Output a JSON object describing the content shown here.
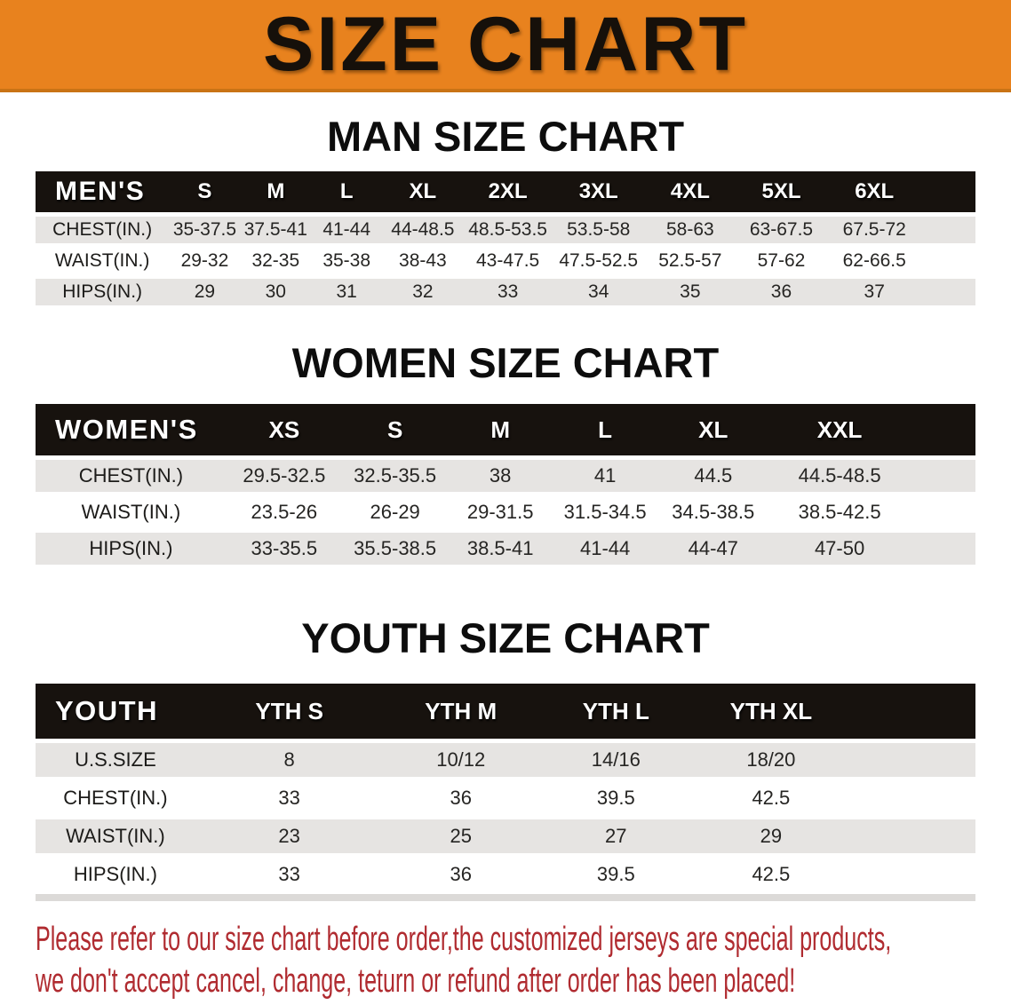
{
  "banner": {
    "title": "SIZE CHART"
  },
  "men": {
    "heading": "MAN SIZE CHART",
    "label": "MEN'S",
    "columns": [
      "S",
      "M",
      "L",
      "XL",
      "2XL",
      "3XL",
      "4XL",
      "5XL",
      "6XL"
    ],
    "rows": [
      {
        "label": "CHEST(IN.)",
        "values": [
          "35-37.5",
          "37.5-41",
          "41-44",
          "44-48.5",
          "48.5-53.5",
          "53.5-58",
          "58-63",
          "63-67.5",
          "67.5-72"
        ]
      },
      {
        "label": "WAIST(IN.)",
        "values": [
          "29-32",
          "32-35",
          "35-38",
          "38-43",
          "43-47.5",
          "47.5-52.5",
          "52.5-57",
          "57-62",
          "62-66.5"
        ]
      },
      {
        "label": "HIPS(IN.)",
        "values": [
          "29",
          "30",
          "31",
          "32",
          "33",
          "34",
          "35",
          "36",
          "37"
        ]
      }
    ]
  },
  "women": {
    "heading": "WOMEN SIZE CHART",
    "label": "WOMEN'S",
    "columns": [
      "XS",
      "S",
      "M",
      "L",
      "XL",
      "XXL"
    ],
    "rows": [
      {
        "label": "CHEST(IN.)",
        "values": [
          "29.5-32.5",
          "32.5-35.5",
          "38",
          "41",
          "44.5",
          "44.5-48.5"
        ]
      },
      {
        "label": "WAIST(IN.)",
        "values": [
          "23.5-26",
          "26-29",
          "29-31.5",
          "31.5-34.5",
          "34.5-38.5",
          "38.5-42.5"
        ]
      },
      {
        "label": "HIPS(IN.)",
        "values": [
          "33-35.5",
          "35.5-38.5",
          "38.5-41",
          "41-44",
          "44-47",
          "47-50"
        ]
      }
    ]
  },
  "youth": {
    "heading": "YOUTH SIZE CHART",
    "label": "YOUTH",
    "columns": [
      "YTH S",
      "YTH M",
      "YTH L",
      "YTH XL"
    ],
    "rows": [
      {
        "label": "U.S.SIZE",
        "values": [
          "8",
          "10/12",
          "14/16",
          "18/20"
        ]
      },
      {
        "label": "CHEST(IN.)",
        "values": [
          "33",
          "36",
          "39.5",
          "42.5"
        ]
      },
      {
        "label": "WAIST(IN.)",
        "values": [
          "23",
          "25",
          "27",
          "29"
        ]
      },
      {
        "label": "HIPS(IN.)",
        "values": [
          "33",
          "36",
          "39.5",
          "42.5"
        ]
      }
    ]
  },
  "footer": {
    "line1": "Please refer to our size chart before order,the customized jerseys are special products,",
    "line2": "we don't accept cancel, change, teturn or refund after order has been placed!"
  },
  "colors": {
    "banner_orange": "#e8821e",
    "banner_edge": "#c97315",
    "header_black": "#17120e",
    "row_gray": "#e6e4e2",
    "footer_red": "#b02b30"
  }
}
